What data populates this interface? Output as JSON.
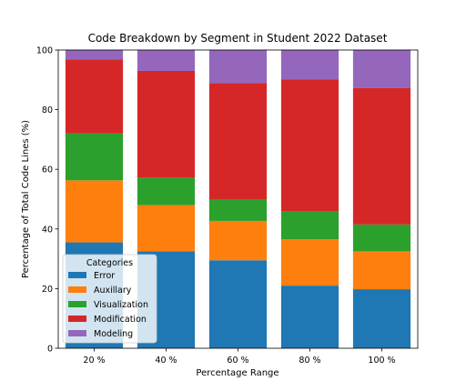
{
  "chart_data": {
    "type": "bar",
    "stacked": true,
    "title": "Code Breakdown by Segment in Student 2022 Dataset",
    "xlabel": "Percentage Range",
    "ylabel": "Percentage of Total Code Lines (%)",
    "categories": [
      "20 %",
      "40 %",
      "60 %",
      "80 %",
      "100 %"
    ],
    "ylim": [
      0,
      100
    ],
    "yticks": [
      0,
      20,
      40,
      60,
      80,
      100
    ],
    "grid": false,
    "legend": {
      "title": "Categories",
      "position": "lower-left"
    },
    "series": [
      {
        "name": "Error",
        "color": "#1f77b4",
        "values": [
          35.5,
          32.5,
          29.5,
          21.0,
          19.8
        ]
      },
      {
        "name": "Auxillary",
        "color": "#ff7f0e",
        "values": [
          20.8,
          15.5,
          13.2,
          15.5,
          12.7
        ]
      },
      {
        "name": "Visualization",
        "color": "#2ca02c",
        "values": [
          15.7,
          9.2,
          7.3,
          9.3,
          9.0
        ]
      },
      {
        "name": "Modification",
        "color": "#d62728",
        "values": [
          24.9,
          35.8,
          38.9,
          44.3,
          45.8
        ]
      },
      {
        "name": "Modeling",
        "color": "#9467bd",
        "values": [
          3.1,
          7.0,
          11.1,
          9.9,
          12.7
        ]
      }
    ]
  }
}
